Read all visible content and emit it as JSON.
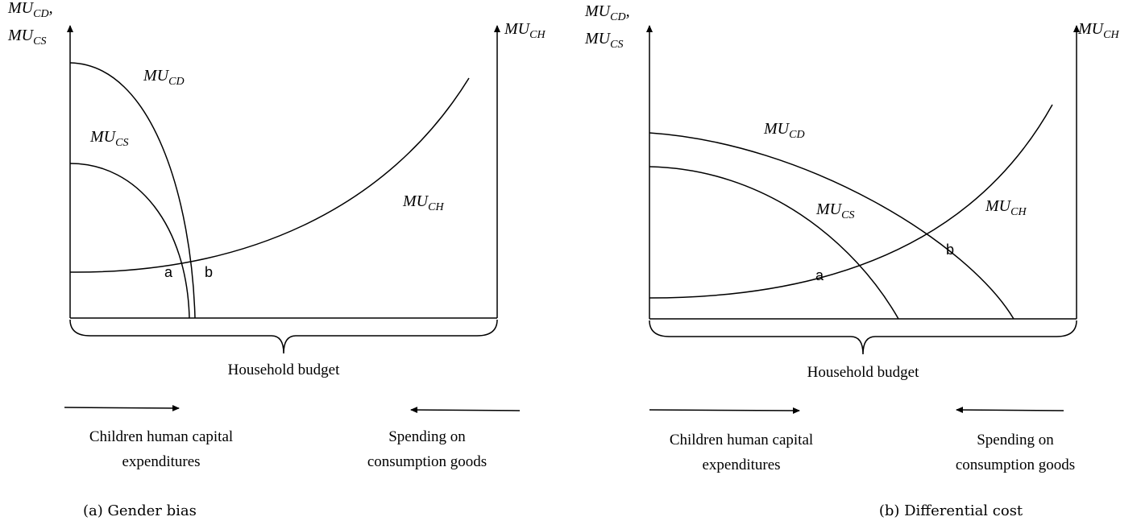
{
  "panels": [
    {
      "caption": "(a) Gender bias",
      "axis_left_label": [
        {
          "main": "MU",
          "sub": "CD",
          "punct": ","
        },
        {
          "main": "MU",
          "sub": "CS"
        }
      ],
      "axis_right_label": {
        "main": "MU",
        "sub": "CH"
      },
      "curve_labels": [
        {
          "main": "MU",
          "sub": "CD"
        },
        {
          "main": "MU",
          "sub": "CS"
        },
        {
          "main": "MU",
          "sub": "CH"
        }
      ],
      "points": [
        "a",
        "b"
      ],
      "budget_label": "Household budget",
      "left_arrow_label": [
        "Children human capital",
        "expenditures"
      ],
      "right_arrow_label": [
        "Spending on",
        "consumption goods"
      ]
    },
    {
      "caption": "(b) Differential cost",
      "axis_left_label": [
        {
          "main": "MU",
          "sub": "CD",
          "punct": ","
        },
        {
          "main": "MU",
          "sub": "CS"
        }
      ],
      "axis_right_label": {
        "main": "MU",
        "sub": "CH"
      },
      "curve_labels": [
        {
          "main": "MU",
          "sub": "CD"
        },
        {
          "main": "MU",
          "sub": "CS"
        },
        {
          "main": "MU",
          "sub": "CH"
        }
      ],
      "points": [
        "a",
        "b"
      ],
      "budget_label": "Household budget",
      "left_arrow_label": [
        "Children human capital",
        "expenditures"
      ],
      "right_arrow_label": [
        "Spending on",
        "consumption goods"
      ]
    }
  ]
}
